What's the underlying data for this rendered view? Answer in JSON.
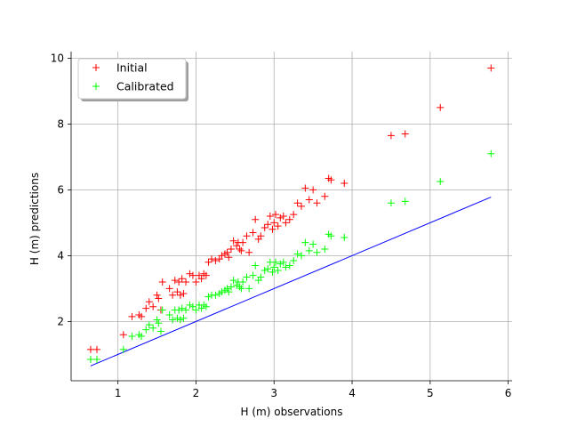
{
  "chart_data": {
    "type": "scatter",
    "title": "",
    "xlabel": "H (m) observations",
    "ylabel": "H (m) predictions",
    "xlim": [
      0.4,
      6.05
    ],
    "ylim": [
      0.2,
      10.2
    ],
    "xticks": [
      1,
      2,
      3,
      4,
      5,
      6
    ],
    "yticks": [
      2,
      4,
      6,
      8,
      10
    ],
    "grid": true,
    "legend_position": "top-left",
    "reference_line": {
      "x": [
        0.65,
        5.78
      ],
      "y": [
        0.65,
        5.78
      ],
      "color": "#0000ff"
    },
    "series": [
      {
        "name": "Initial",
        "color": "#ff0000",
        "marker": "+",
        "x": [
          0.65,
          0.73,
          1.07,
          1.18,
          1.27,
          1.3,
          1.36,
          1.4,
          1.45,
          1.5,
          1.52,
          1.55,
          1.57,
          1.66,
          1.7,
          1.73,
          1.76,
          1.78,
          1.8,
          1.82,
          1.84,
          1.87,
          1.92,
          1.96,
          2.0,
          2.04,
          2.07,
          2.1,
          2.13,
          2.16,
          2.2,
          2.25,
          2.3,
          2.33,
          2.37,
          2.4,
          2.42,
          2.45,
          2.48,
          2.52,
          2.54,
          2.56,
          2.58,
          2.6,
          2.65,
          2.68,
          2.73,
          2.76,
          2.8,
          2.83,
          2.88,
          2.92,
          2.95,
          2.98,
          3.0,
          3.02,
          3.05,
          3.08,
          3.12,
          3.15,
          3.2,
          3.25,
          3.3,
          3.35,
          3.4,
          3.45,
          3.5,
          3.55,
          3.65,
          3.7,
          3.73,
          3.9,
          4.5,
          4.68,
          5.13,
          5.78
        ],
        "y": [
          1.15,
          1.15,
          1.6,
          2.15,
          2.2,
          2.15,
          2.4,
          2.6,
          2.45,
          2.8,
          2.7,
          2.35,
          3.2,
          3.0,
          2.8,
          3.25,
          2.9,
          3.2,
          2.8,
          3.3,
          2.85,
          3.2,
          3.45,
          3.4,
          3.2,
          3.4,
          3.3,
          3.45,
          3.4,
          3.8,
          3.9,
          3.85,
          3.9,
          4.0,
          4.05,
          4.1,
          3.95,
          4.2,
          4.45,
          4.3,
          4.4,
          4.2,
          4.15,
          4.4,
          4.6,
          4.1,
          4.7,
          5.1,
          4.5,
          4.6,
          4.85,
          4.95,
          5.2,
          4.8,
          5.0,
          5.25,
          4.9,
          5.15,
          5.2,
          5.0,
          5.1,
          5.25,
          5.6,
          5.5,
          6.05,
          5.7,
          6.0,
          5.6,
          5.8,
          6.35,
          6.3,
          6.2,
          7.65,
          7.7,
          8.5,
          9.7
        ]
      },
      {
        "name": "Calibrated",
        "color": "#00ff00",
        "marker": "+",
        "x": [
          0.65,
          0.73,
          1.07,
          1.18,
          1.27,
          1.3,
          1.36,
          1.4,
          1.45,
          1.5,
          1.52,
          1.55,
          1.57,
          1.66,
          1.7,
          1.73,
          1.76,
          1.78,
          1.8,
          1.82,
          1.84,
          1.87,
          1.92,
          1.96,
          2.0,
          2.04,
          2.07,
          2.1,
          2.13,
          2.16,
          2.2,
          2.25,
          2.3,
          2.33,
          2.37,
          2.4,
          2.42,
          2.45,
          2.48,
          2.52,
          2.54,
          2.56,
          2.58,
          2.6,
          2.65,
          2.68,
          2.73,
          2.76,
          2.8,
          2.83,
          2.88,
          2.92,
          2.95,
          2.98,
          3.0,
          3.02,
          3.05,
          3.08,
          3.12,
          3.15,
          3.2,
          3.25,
          3.3,
          3.35,
          3.4,
          3.45,
          3.5,
          3.55,
          3.65,
          3.7,
          3.73,
          3.9,
          4.5,
          4.68,
          5.13,
          5.78
        ],
        "y": [
          0.85,
          0.85,
          1.15,
          1.55,
          1.6,
          1.55,
          1.75,
          1.9,
          1.8,
          2.05,
          1.95,
          1.7,
          2.35,
          2.2,
          2.05,
          2.35,
          2.1,
          2.35,
          2.05,
          2.4,
          2.1,
          2.35,
          2.5,
          2.45,
          2.35,
          2.5,
          2.4,
          2.5,
          2.45,
          2.75,
          2.8,
          2.8,
          2.85,
          2.9,
          2.95,
          3.0,
          2.9,
          3.05,
          3.25,
          3.1,
          3.2,
          3.05,
          3.0,
          3.2,
          3.35,
          3.0,
          3.4,
          3.7,
          3.25,
          3.35,
          3.55,
          3.6,
          3.8,
          3.5,
          3.65,
          3.8,
          3.55,
          3.75,
          3.8,
          3.65,
          3.7,
          3.85,
          4.05,
          4.0,
          4.4,
          4.15,
          4.35,
          4.1,
          4.2,
          4.65,
          4.6,
          4.55,
          5.6,
          5.65,
          6.25,
          7.1
        ]
      }
    ]
  }
}
